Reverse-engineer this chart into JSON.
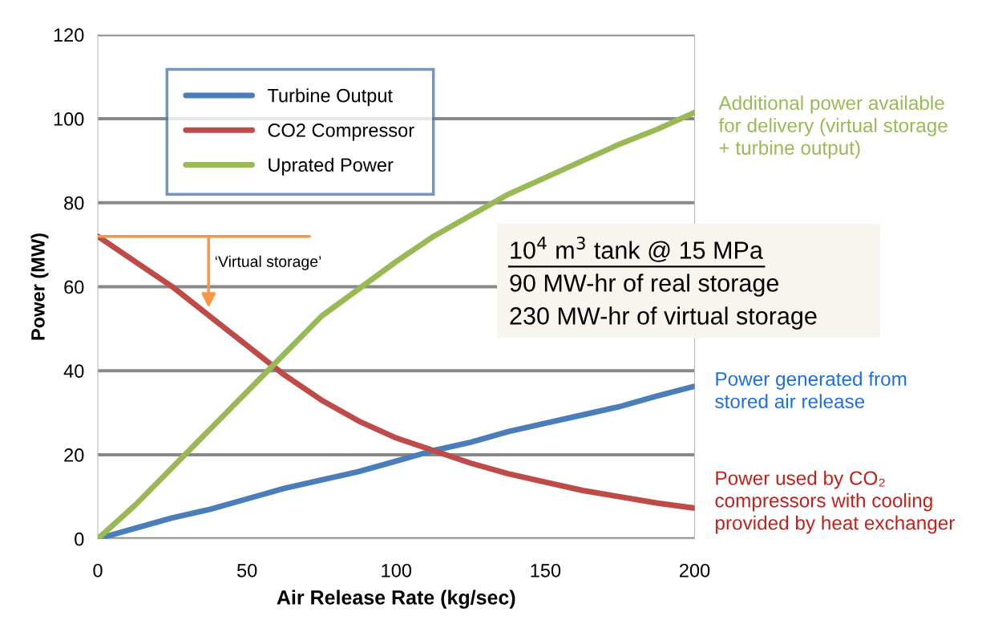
{
  "chart_data": {
    "type": "line",
    "xlabel": "Air Release Rate (kg/sec)",
    "ylabel": "Power (MW)",
    "x": [
      0,
      12.5,
      25,
      37.5,
      50,
      62.5,
      75,
      87.5,
      100,
      112.5,
      125,
      137.5,
      150,
      162.5,
      175,
      187.5,
      200
    ],
    "series": [
      {
        "name": "Turbine Output",
        "color": "#4a7ebb",
        "values": [
          0,
          2.5,
          5,
          7,
          9.5,
          12,
          14,
          16,
          18.5,
          21,
          23,
          25.5,
          27.5,
          29.5,
          31.5,
          34,
          36.3
        ]
      },
      {
        "name": "CO2 Compressor",
        "color": "#be4b48",
        "values": [
          72,
          66,
          60,
          53,
          46,
          39,
          33,
          28,
          24,
          21,
          18,
          15.5,
          13.5,
          11.5,
          10,
          8.5,
          7.3
        ]
      },
      {
        "name": "Uprated Power",
        "color": "#98b954",
        "values": [
          0,
          8,
          17,
          26,
          35,
          44,
          53,
          59.5,
          66,
          72,
          77,
          82,
          86,
          90,
          94,
          97.5,
          101.5
        ]
      },
      {
        "color": "#f79646",
        "x": [
          0,
          71
        ],
        "values": [
          72,
          72
        ]
      }
    ],
    "xlim": [
      0,
      200
    ],
    "xticks": [
      0,
      50,
      100,
      150,
      200
    ],
    "ylim": [
      0,
      120
    ],
    "yticks": [
      0,
      20,
      40,
      60,
      80,
      100,
      120
    ],
    "grid": "y",
    "legend": "top left",
    "marker": "none",
    "line_style": "solid",
    "annotations": [
      "‘Virtual storage’",
      "10$^{4}$ m$^{3}$ tank @ 15 MPa",
      "90 MW-hr of real storage",
      "230 MW-hr of virtual storage",
      "Additional power available\nfor delivery (virtual storage\n+ turbine output)",
      "Power generated from\nstored air release",
      "Power used by CO₂\ncompressors with cooling\nprovided by heat exchanger"
    ]
  }
}
